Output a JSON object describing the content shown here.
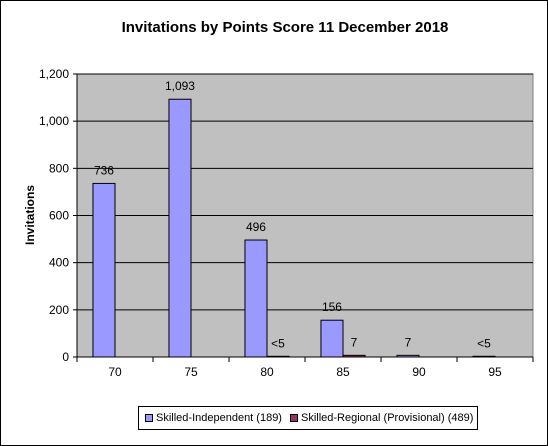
{
  "chart_data": {
    "type": "bar",
    "title": "Invitations by Points Score 11 December 2018",
    "xlabel": "",
    "ylabel": "Invitations",
    "categories": [
      "70",
      "75",
      "80",
      "85",
      "90",
      "95"
    ],
    "ylim": [
      0,
      1200
    ],
    "yticks": [
      "0",
      "200",
      "400",
      "600",
      "800",
      "1,000",
      "1,200"
    ],
    "grid": true,
    "legend_position": "bottom",
    "series": [
      {
        "name": "Skilled-Independent (189)",
        "color": "#9999ff",
        "values": [
          736,
          1093,
          496,
          156,
          7,
          3
        ],
        "labels": [
          "736",
          "1,093",
          "496",
          "156",
          "7",
          "<5"
        ]
      },
      {
        "name": "Skilled-Regional (Provisional) (489)",
        "color": "#993366",
        "values": [
          0,
          0,
          3,
          7,
          0,
          0
        ],
        "labels": [
          "",
          "",
          "<5",
          "7",
          "",
          ""
        ]
      }
    ]
  },
  "colors": {
    "plot_background": "#c0c0c0",
    "gridline": "#000000"
  }
}
